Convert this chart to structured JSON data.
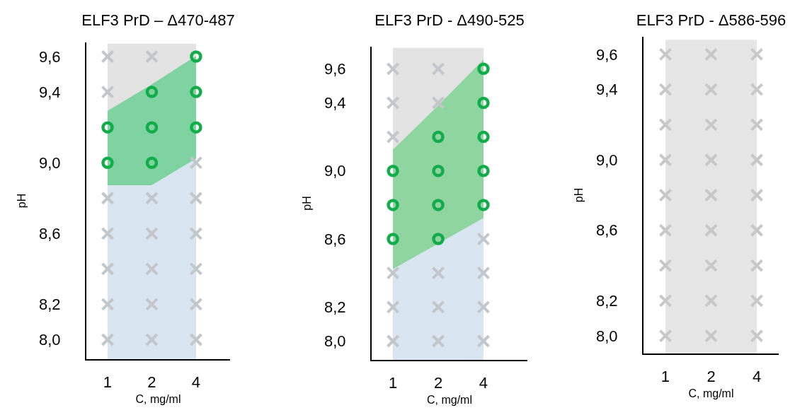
{
  "chart_data": [
    {
      "type": "scatter",
      "title": "ELF3 PrD – Δ470-487",
      "xlabel": "C, mg/ml",
      "ylabel": "pH",
      "categories": [
        "1",
        "2",
        "4"
      ],
      "ylim": [
        7.89,
        9.68
      ],
      "yticks": [
        {
          "value": 8.0,
          "label": "8,0"
        },
        {
          "value": 8.2,
          "label": "8,2"
        },
        {
          "value": 8.6,
          "label": "8,6"
        },
        {
          "value": 9.0,
          "label": "9,0"
        },
        {
          "value": 9.4,
          "label": "9,4"
        },
        {
          "value": 9.6,
          "label": "9,6"
        }
      ],
      "grid": false,
      "series": [
        {
          "type": "area",
          "color": "#e3e3e3",
          "values": [
            9.67,
            9.67,
            9.67
          ]
        },
        {
          "type": "area",
          "color": "#7fd3a0",
          "values": [
            9.29,
            9.44,
            9.6
          ]
        },
        {
          "type": "area",
          "color": "#d9e5f1",
          "values": [
            8.87,
            8.87,
            9.02
          ]
        },
        {
          "type": "scatter",
          "marker": "cross",
          "color": "#c3c7cb",
          "x": [
            "1",
            "2",
            "1",
            "4",
            "1",
            "2",
            "4",
            "1",
            "2",
            "4",
            "1",
            "2",
            "4",
            "1",
            "2",
            "4",
            "1",
            "2",
            "4"
          ],
          "values": [
            9.6,
            9.6,
            9.4,
            9.0,
            8.8,
            8.8,
            8.8,
            8.6,
            8.6,
            8.6,
            8.4,
            8.4,
            8.4,
            8.2,
            8.2,
            8.2,
            8.0,
            8.0,
            8.0
          ]
        },
        {
          "type": "scatter",
          "marker": "circle",
          "color": "#12ad4a",
          "x": [
            "4",
            "2",
            "4",
            "1",
            "2",
            "4",
            "1",
            "2"
          ],
          "values": [
            9.6,
            9.4,
            9.4,
            9.2,
            9.2,
            9.2,
            9.0,
            9.0
          ]
        }
      ]
    },
    {
      "type": "scatter",
      "title": "ELF3 PrD - Δ490-525",
      "xlabel": "C, mg/ml",
      "ylabel": "pH",
      "categories": [
        "1",
        "2",
        "4"
      ],
      "ylim": [
        7.89,
        9.73
      ],
      "yticks": [
        {
          "value": 8.0,
          "label": "8,0"
        },
        {
          "value": 8.2,
          "label": "8,2"
        },
        {
          "value": 8.6,
          "label": "8,6"
        },
        {
          "value": 9.0,
          "label": "9,0"
        },
        {
          "value": 9.4,
          "label": "9,4"
        },
        {
          "value": 9.6,
          "label": "9,6"
        }
      ],
      "grid": false,
      "series": [
        {
          "type": "area",
          "color": "#e3e3e3",
          "values": [
            9.72,
            9.72,
            9.72
          ]
        },
        {
          "type": "area",
          "color": "#8fd5a0",
          "values": [
            9.12,
            9.38,
            9.65
          ]
        },
        {
          "type": "area",
          "color": "#d9e5f1",
          "values": [
            8.42,
            8.57,
            8.72
          ]
        },
        {
          "type": "scatter",
          "marker": "cross",
          "color": "#c3c7cb",
          "x": [
            "1",
            "2",
            "1",
            "2",
            "1",
            "4",
            "1",
            "2",
            "4",
            "1",
            "2",
            "4",
            "1",
            "2",
            "4"
          ],
          "values": [
            9.6,
            9.6,
            9.4,
            9.4,
            9.2,
            8.6,
            8.4,
            8.4,
            8.4,
            8.2,
            8.2,
            8.2,
            8.0,
            8.0,
            8.0
          ]
        },
        {
          "type": "scatter",
          "marker": "circle",
          "color": "#12ad4a",
          "x": [
            "4",
            "4",
            "2",
            "4",
            "1",
            "2",
            "4",
            "1",
            "2",
            "4",
            "1",
            "2"
          ],
          "values": [
            9.6,
            9.4,
            9.2,
            9.2,
            9.0,
            9.0,
            9.0,
            8.8,
            8.8,
            8.8,
            8.6,
            8.6
          ]
        }
      ]
    },
    {
      "type": "scatter",
      "title": "ELF3 PrD - Δ586-596",
      "xlabel": "C, mg/ml",
      "ylabel": "pH",
      "categories": [
        "1",
        "2",
        "4"
      ],
      "ylim": [
        7.9,
        9.7
      ],
      "yticks": [
        {
          "value": 8.0,
          "label": "8,0"
        },
        {
          "value": 8.2,
          "label": "8,2"
        },
        {
          "value": 8.6,
          "label": "8,6"
        },
        {
          "value": 9.0,
          "label": "9,0"
        },
        {
          "value": 9.4,
          "label": "9,4"
        },
        {
          "value": 9.6,
          "label": "9,6"
        }
      ],
      "grid": false,
      "series": [
        {
          "type": "area",
          "color": "#e6e6e6",
          "values": [
            9.68,
            9.68,
            9.68
          ]
        },
        {
          "type": "scatter",
          "marker": "cross",
          "color": "#c8c8c8",
          "x": [
            "1",
            "2",
            "4",
            "1",
            "2",
            "4",
            "1",
            "2",
            "4",
            "1",
            "2",
            "4",
            "1",
            "2",
            "4",
            "1",
            "2",
            "4",
            "1",
            "2",
            "4",
            "1",
            "2",
            "4",
            "1",
            "2",
            "4"
          ],
          "values": [
            9.6,
            9.6,
            9.6,
            9.4,
            9.4,
            9.4,
            9.2,
            9.2,
            9.2,
            9.0,
            9.0,
            9.0,
            8.8,
            8.8,
            8.8,
            8.6,
            8.6,
            8.6,
            8.4,
            8.4,
            8.4,
            8.2,
            8.2,
            8.2,
            8.0,
            8.0,
            8.0
          ]
        }
      ]
    }
  ]
}
